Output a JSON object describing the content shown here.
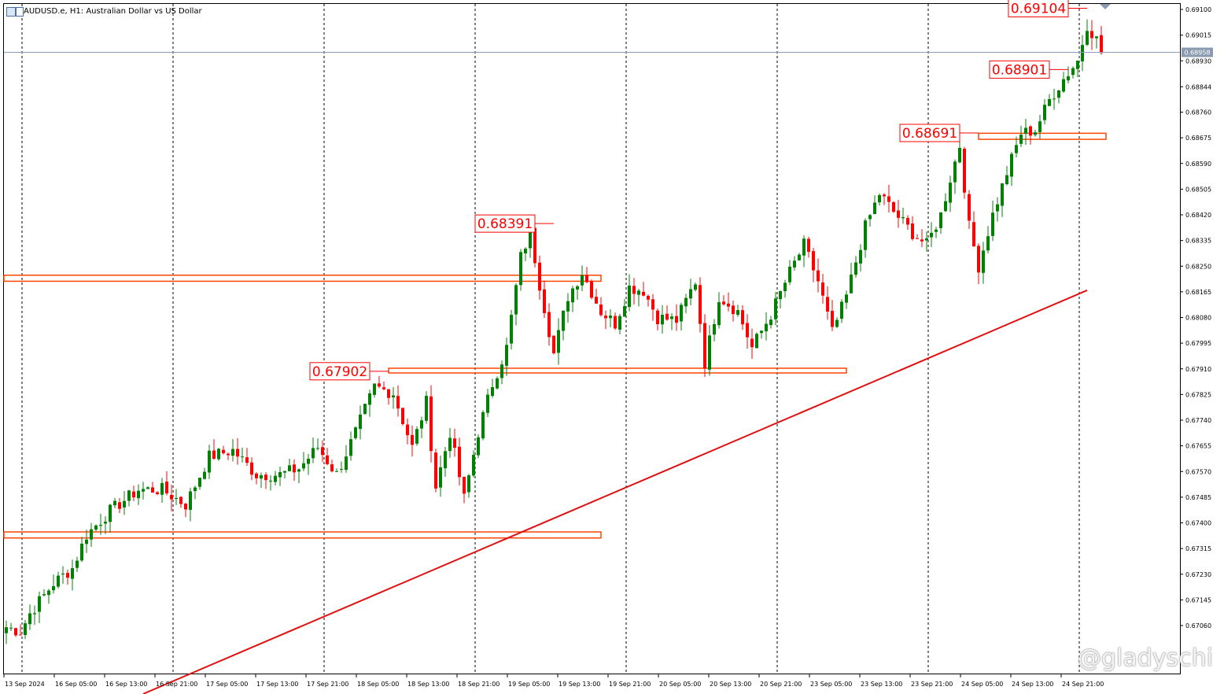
{
  "window": {
    "title": "AUDUSD.e, H1:  Australian Dollar vs US Dollar",
    "watermark": "@gladyschi"
  },
  "colors": {
    "bull": "#008000",
    "bear": "#ff0000",
    "zone": "#ff4500",
    "trendline": "#e01010",
    "grid": "#000000",
    "bid_line": "#8aa0b8",
    "price_tag_bg": "#8a9bb0"
  },
  "chart_data": {
    "type": "candlestick",
    "symbol": "AUDUSD.e",
    "timeframe": "H1",
    "ylim": [
      0.6698,
      0.6912
    ],
    "y_ticks": [
      "0.69100",
      "0.69015",
      "0.68930",
      "0.68844",
      "0.68760",
      "0.68675",
      "0.68590",
      "0.68505",
      "0.68420",
      "0.68335",
      "0.68250",
      "0.68165",
      "0.68080",
      "0.67995",
      "0.67910",
      "0.67825",
      "0.67740",
      "0.67655",
      "0.67570",
      "0.67485",
      "0.67400",
      "0.67315",
      "0.67230",
      "0.67145",
      "0.67060"
    ],
    "x_labels": [
      "13 Sep 2024",
      "16 Sep 05:00",
      "16 Sep 13:00",
      "16 Sep 21:00",
      "17 Sep 05:00",
      "17 Sep 13:00",
      "17 Sep 21:00",
      "18 Sep 05:00",
      "18 Sep 13:00",
      "18 Sep 21:00",
      "19 Sep 05:00",
      "19 Sep 13:00",
      "19 Sep 21:00",
      "20 Sep 05:00",
      "20 Sep 13:00",
      "20 Sep 21:00",
      "23 Sep 05:00",
      "23 Sep 13:00",
      "23 Sep 21:00",
      "24 Sep 05:00",
      "24 Sep 13:00",
      "24 Sep 21:00"
    ],
    "current_price": "0.68958",
    "anchors": [
      [
        0,
        0.67055
      ],
      [
        3,
        0.6704
      ],
      [
        5,
        0.671
      ],
      [
        10,
        0.672
      ],
      [
        14,
        0.6725
      ],
      [
        17,
        0.6736
      ],
      [
        22,
        0.6744
      ],
      [
        28,
        0.6751
      ],
      [
        33,
        0.6751
      ],
      [
        38,
        0.6746
      ],
      [
        43,
        0.6762
      ],
      [
        48,
        0.6764
      ],
      [
        53,
        0.6756
      ],
      [
        58,
        0.6756
      ],
      [
        62,
        0.6758
      ],
      [
        66,
        0.6765
      ],
      [
        70,
        0.6756
      ],
      [
        74,
        0.677
      ],
      [
        78,
        0.6785
      ],
      [
        82,
        0.6783
      ],
      [
        86,
        0.6765
      ],
      [
        89,
        0.678
      ],
      [
        91,
        0.6752
      ],
      [
        94,
        0.677
      ],
      [
        97,
        0.6748
      ],
      [
        100,
        0.677
      ],
      [
        103,
        0.6786
      ],
      [
        106,
        0.6798
      ],
      [
        109,
        0.6828
      ],
      [
        111,
        0.6836
      ],
      [
        113,
        0.6819
      ],
      [
        116,
        0.6796
      ],
      [
        119,
        0.6815
      ],
      [
        122,
        0.6823
      ],
      [
        126,
        0.681
      ],
      [
        129,
        0.6806
      ],
      [
        132,
        0.6818
      ],
      [
        135,
        0.6817
      ],
      [
        138,
        0.6808
      ],
      [
        142,
        0.6807
      ],
      [
        146,
        0.682
      ],
      [
        148,
        0.6793
      ],
      [
        151,
        0.6815
      ],
      [
        155,
        0.681
      ],
      [
        158,
        0.6798
      ],
      [
        162,
        0.6809
      ],
      [
        166,
        0.6823
      ],
      [
        169,
        0.6832
      ],
      [
        172,
        0.682
      ],
      [
        175,
        0.6803
      ],
      [
        178,
        0.6815
      ],
      [
        182,
        0.6838
      ],
      [
        185,
        0.6849
      ],
      [
        188,
        0.6843
      ],
      [
        192,
        0.6836
      ],
      [
        195,
        0.6832
      ],
      [
        198,
        0.6842
      ],
      [
        200,
        0.6854
      ],
      [
        202,
        0.6865
      ],
      [
        204,
        0.6838
      ],
      [
        206,
        0.6825
      ],
      [
        209,
        0.6842
      ],
      [
        212,
        0.6856
      ],
      [
        215,
        0.6869
      ],
      [
        218,
        0.687
      ],
      [
        221,
        0.688
      ],
      [
        224,
        0.6887
      ],
      [
        227,
        0.6893
      ],
      [
        229,
        0.6905
      ],
      [
        231,
        0.69
      ],
      [
        232,
        0.68958
      ]
    ],
    "zones": [
      {
        "from_bar": -1,
        "to_bar": 126,
        "high": 0.6822,
        "low": 0.682
      },
      {
        "from_bar": 81,
        "to_bar": 178,
        "high": 0.67912,
        "low": 0.67897
      },
      {
        "from_bar": -1,
        "to_bar": 126,
        "high": 0.6737,
        "low": 0.6735
      },
      {
        "from_bar": 206,
        "to_bar": 233,
        "high": 0.6869,
        "low": 0.6867
      }
    ],
    "trendline": {
      "from": [
        29,
        0.6699
      ],
      "to": [
        229,
        0.6817
      ]
    },
    "annotations": [
      {
        "text": "0.68391",
        "value": 0.68391,
        "bar": 116
      },
      {
        "text": "0.67902",
        "value": 0.67902,
        "bar": 81
      },
      {
        "text": "0.68691",
        "value": 0.68691,
        "bar": 206
      },
      {
        "text": "0.68901",
        "value": 0.68901,
        "bar": 225
      },
      {
        "text": "0.69104",
        "value": 0.69104,
        "bar": 229
      }
    ]
  }
}
